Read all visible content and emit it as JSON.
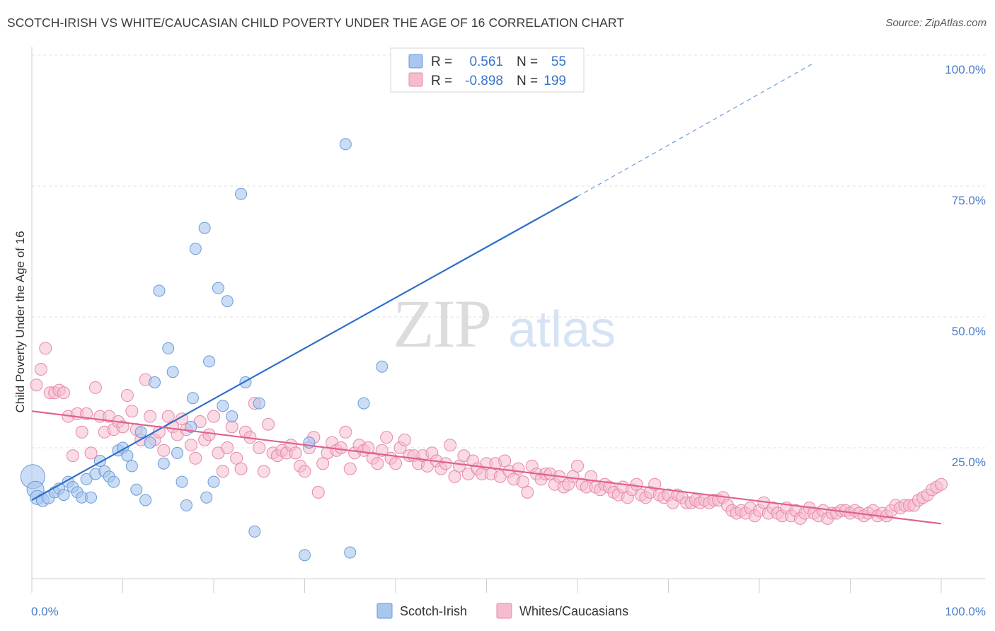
{
  "header": {
    "title": "SCOTCH-IRISH VS WHITE/CAUCASIAN CHILD POVERTY UNDER THE AGE OF 16 CORRELATION CHART",
    "source": "Source: ZipAtlas.com"
  },
  "watermark": {
    "zip": "ZIP",
    "atlas": "atlas"
  },
  "legend": {
    "rows": [
      {
        "r_label": "R =",
        "r_value": "0.561",
        "n_label": "N =",
        "n_value": "55",
        "color": "#a9c6ee",
        "stroke": "#6a9ad8"
      },
      {
        "r_label": "R =",
        "r_value": "-0.898",
        "n_label": "N =",
        "n_value": "199",
        "color": "#f6bccd",
        "stroke": "#e58aa8"
      }
    ]
  },
  "bottom_legend": [
    {
      "label": "Scotch-Irish",
      "color": "#a9c6ee",
      "stroke": "#6a9ad8"
    },
    {
      "label": "Whites/Caucasians",
      "color": "#f6bccd",
      "stroke": "#e58aa8"
    }
  ],
  "chart_data": {
    "type": "scatter",
    "title": "SCOTCH-IRISH VS WHITE/CAUCASIAN CHILD POVERTY UNDER THE AGE OF 16 CORRELATION CHART",
    "xlabel": "",
    "ylabel": "Child Poverty Under the Age of 16",
    "xlim": [
      0,
      100
    ],
    "ylim": [
      0,
      100
    ],
    "x_tick_labels": [
      "0.0%",
      "100.0%"
    ],
    "y_ticks": [
      25,
      50,
      75,
      100
    ],
    "y_tick_labels": [
      "25.0%",
      "50.0%",
      "75.0%",
      "100.0%"
    ],
    "grid": true,
    "legend_position": "top-center",
    "series": [
      {
        "name": "Scotch-Irish",
        "color": "#a9c6ee",
        "stroke": "#6a9ad8",
        "trend": {
          "x0": 0,
          "y0": 15.0,
          "x1": 60,
          "y1": 73.0,
          "dash_to_x": 86,
          "dash_to_y": 98.5,
          "color": "#2f6fcc"
        },
        "points": [
          [
            0.1,
            19.5,
            17
          ],
          [
            0.4,
            17.0,
            12
          ],
          [
            0.6,
            15.5,
            10
          ],
          [
            1.2,
            15.0,
            9
          ],
          [
            1.8,
            15.5,
            9
          ],
          [
            2.5,
            16.5,
            8
          ],
          [
            3.0,
            17.2,
            8
          ],
          [
            3.5,
            16.0,
            8
          ],
          [
            4.0,
            18.5,
            8
          ],
          [
            4.5,
            17.5,
            8
          ],
          [
            5.0,
            16.5,
            8
          ],
          [
            5.5,
            15.5,
            8
          ],
          [
            6.0,
            19.0,
            8
          ],
          [
            6.5,
            15.5,
            8
          ],
          [
            7.0,
            20.0,
            8
          ],
          [
            7.5,
            22.5,
            8
          ],
          [
            8.0,
            20.5,
            8
          ],
          [
            8.5,
            19.5,
            8
          ],
          [
            9.0,
            18.5,
            8
          ],
          [
            9.5,
            24.5,
            8
          ],
          [
            10.0,
            25.0,
            8
          ],
          [
            10.5,
            23.5,
            8
          ],
          [
            11.0,
            21.5,
            8
          ],
          [
            11.5,
            17.0,
            8
          ],
          [
            12.0,
            28.0,
            8
          ],
          [
            12.5,
            15.0,
            8
          ],
          [
            13.0,
            26.0,
            8
          ],
          [
            13.5,
            37.5,
            8
          ],
          [
            14.0,
            55.0,
            8
          ],
          [
            14.5,
            22.0,
            8
          ],
          [
            15.0,
            44.0,
            8
          ],
          [
            15.5,
            39.5,
            8
          ],
          [
            16.0,
            24.0,
            8
          ],
          [
            16.5,
            18.5,
            8
          ],
          [
            17.0,
            14.0,
            8
          ],
          [
            17.5,
            29.0,
            8
          ],
          [
            17.7,
            34.5,
            8
          ],
          [
            18.0,
            63.0,
            8
          ],
          [
            19.0,
            67.0,
            8
          ],
          [
            19.5,
            41.5,
            8
          ],
          [
            19.2,
            15.5,
            8
          ],
          [
            20.0,
            18.5,
            8
          ],
          [
            20.5,
            55.5,
            8
          ],
          [
            21.0,
            33.0,
            8
          ],
          [
            21.5,
            53.0,
            8
          ],
          [
            22.0,
            31.0,
            8
          ],
          [
            23.0,
            73.5,
            8
          ],
          [
            23.5,
            37.5,
            8
          ],
          [
            25.0,
            33.5,
            8
          ],
          [
            24.5,
            9.0,
            8
          ],
          [
            30.0,
            4.5,
            8
          ],
          [
            30.5,
            26.0,
            8
          ],
          [
            34.5,
            83.0,
            8
          ],
          [
            35.0,
            5.0,
            8
          ],
          [
            36.5,
            33.5,
            8
          ],
          [
            38.5,
            40.5,
            8
          ],
          [
            53.5,
            100.0,
            8
          ]
        ]
      },
      {
        "name": "Whites/Caucasians",
        "color": "#f6bccd",
        "stroke": "#e58aa8",
        "trend": {
          "x0": 0,
          "y0": 32.0,
          "x1": 100,
          "y1": 10.5,
          "color": "#e0608e"
        },
        "points": [
          [
            0.5,
            37
          ],
          [
            1.0,
            40
          ],
          [
            1.5,
            44
          ],
          [
            2.0,
            35.5
          ],
          [
            2.5,
            35.5
          ],
          [
            3.0,
            36
          ],
          [
            3.5,
            35.5
          ],
          [
            4.0,
            31
          ],
          [
            4.5,
            23.5
          ],
          [
            5.0,
            31.5
          ],
          [
            5.5,
            28
          ],
          [
            6.0,
            31.5
          ],
          [
            6.5,
            24
          ],
          [
            7.0,
            36.5
          ],
          [
            7.5,
            31
          ],
          [
            8.0,
            28
          ],
          [
            8.5,
            31
          ],
          [
            9.0,
            28.5
          ],
          [
            9.5,
            30
          ],
          [
            10.0,
            29
          ],
          [
            10.5,
            35
          ],
          [
            11.0,
            32
          ],
          [
            11.5,
            28.5
          ],
          [
            12.0,
            26.5
          ],
          [
            12.5,
            38
          ],
          [
            13.0,
            31
          ],
          [
            13.5,
            26.5
          ],
          [
            14.0,
            28
          ],
          [
            14.5,
            24.5
          ],
          [
            15.0,
            31
          ],
          [
            15.5,
            29
          ],
          [
            16.0,
            27.5
          ],
          [
            16.5,
            30.5
          ],
          [
            17.0,
            28.5
          ],
          [
            17.5,
            25.5
          ],
          [
            18.0,
            23
          ],
          [
            18.5,
            30
          ],
          [
            19.0,
            26.5
          ],
          [
            19.5,
            27.5
          ],
          [
            20.0,
            31
          ],
          [
            20.5,
            24
          ],
          [
            21.0,
            20.5
          ],
          [
            21.5,
            25
          ],
          [
            22.0,
            29
          ],
          [
            22.5,
            23
          ],
          [
            23.0,
            21
          ],
          [
            23.5,
            28
          ],
          [
            24.0,
            27
          ],
          [
            24.5,
            33.5
          ],
          [
            25.0,
            25
          ],
          [
            25.5,
            20.5
          ],
          [
            26.0,
            29.5
          ],
          [
            26.5,
            24
          ],
          [
            27.0,
            23.5
          ],
          [
            27.5,
            24.5
          ],
          [
            28.0,
            24
          ],
          [
            28.5,
            25.5
          ],
          [
            29.0,
            24
          ],
          [
            29.5,
            21.5
          ],
          [
            30.0,
            20.5
          ],
          [
            30.5,
            25
          ],
          [
            31.0,
            27
          ],
          [
            31.5,
            16.5
          ],
          [
            32.0,
            22
          ],
          [
            32.5,
            24
          ],
          [
            33.0,
            26
          ],
          [
            33.5,
            24.5
          ],
          [
            34.0,
            25
          ],
          [
            34.5,
            28
          ],
          [
            35.0,
            21
          ],
          [
            35.5,
            24
          ],
          [
            36.0,
            25.5
          ],
          [
            36.5,
            24.5
          ],
          [
            37.0,
            25
          ],
          [
            37.5,
            23
          ],
          [
            38.0,
            22
          ],
          [
            38.5,
            24.5
          ],
          [
            39.0,
            27
          ],
          [
            39.5,
            23
          ],
          [
            40.0,
            22
          ],
          [
            40.5,
            25
          ],
          [
            41.0,
            26.5
          ],
          [
            41.5,
            23.5
          ],
          [
            42.0,
            23.5
          ],
          [
            42.5,
            22
          ],
          [
            43.0,
            23.5
          ],
          [
            43.5,
            21.5
          ],
          [
            44.0,
            24
          ],
          [
            44.5,
            22.5
          ],
          [
            45.0,
            21
          ],
          [
            45.5,
            22
          ],
          [
            46.0,
            25.5
          ],
          [
            46.5,
            19.5
          ],
          [
            47.0,
            21.5
          ],
          [
            47.5,
            23.5
          ],
          [
            48.0,
            20
          ],
          [
            48.5,
            22.5
          ],
          [
            49.0,
            21
          ],
          [
            49.5,
            20
          ],
          [
            50.0,
            22
          ],
          [
            50.5,
            20
          ],
          [
            51.0,
            22
          ],
          [
            51.5,
            19.5
          ],
          [
            52.0,
            22.5
          ],
          [
            52.5,
            20.5
          ],
          [
            53.0,
            19
          ],
          [
            53.5,
            21
          ],
          [
            54.0,
            18.5
          ],
          [
            54.5,
            16.5
          ],
          [
            55.0,
            21.5
          ],
          [
            55.5,
            20
          ],
          [
            56.0,
            19
          ],
          [
            56.5,
            20
          ],
          [
            57.0,
            20
          ],
          [
            57.5,
            18
          ],
          [
            58.0,
            19.5
          ],
          [
            58.5,
            17.5
          ],
          [
            59.0,
            18
          ],
          [
            59.5,
            19.5
          ],
          [
            60.0,
            21.5
          ],
          [
            60.5,
            18
          ],
          [
            61.0,
            17.5
          ],
          [
            61.5,
            19.5
          ],
          [
            62.0,
            17.5
          ],
          [
            62.5,
            17.0
          ],
          [
            63.0,
            18
          ],
          [
            63.5,
            17.5
          ],
          [
            64.0,
            16.5
          ],
          [
            64.5,
            16
          ],
          [
            65.0,
            17.5
          ],
          [
            65.5,
            15.5
          ],
          [
            66.0,
            17
          ],
          [
            66.5,
            18
          ],
          [
            67.0,
            16
          ],
          [
            67.5,
            15.5
          ],
          [
            68.0,
            16.5
          ],
          [
            68.5,
            18
          ],
          [
            69.0,
            16
          ],
          [
            69.5,
            15.5
          ],
          [
            70.0,
            16
          ],
          [
            70.5,
            14.5
          ],
          [
            71.0,
            16
          ],
          [
            71.5,
            15.5
          ],
          [
            72.0,
            14.5
          ],
          [
            72.5,
            14.5
          ],
          [
            73.0,
            15
          ],
          [
            73.5,
            14.5
          ],
          [
            74.0,
            15
          ],
          [
            74.5,
            14.5
          ],
          [
            75.0,
            15
          ],
          [
            75.5,
            15
          ],
          [
            76.0,
            15.5
          ],
          [
            76.5,
            14
          ],
          [
            77.0,
            13
          ],
          [
            77.5,
            12.5
          ],
          [
            78.0,
            13
          ],
          [
            78.5,
            12.5
          ],
          [
            79.0,
            13.5
          ],
          [
            79.5,
            12
          ],
          [
            80.0,
            13
          ],
          [
            80.5,
            14.5
          ],
          [
            81.0,
            12.5
          ],
          [
            81.5,
            13.5
          ],
          [
            82.0,
            12.5
          ],
          [
            82.5,
            12
          ],
          [
            83.0,
            13.5
          ],
          [
            83.5,
            12
          ],
          [
            84.0,
            13
          ],
          [
            84.5,
            11.5
          ],
          [
            85.0,
            12.5
          ],
          [
            85.5,
            13.5
          ],
          [
            86.0,
            12.5
          ],
          [
            86.5,
            12
          ],
          [
            87.0,
            13
          ],
          [
            87.5,
            11.5
          ],
          [
            88.0,
            12.5
          ],
          [
            88.5,
            12.5
          ],
          [
            89.0,
            13
          ],
          [
            89.5,
            13
          ],
          [
            90.0,
            12.5
          ],
          [
            90.5,
            13
          ],
          [
            91.0,
            12.5
          ],
          [
            91.5,
            12
          ],
          [
            92.0,
            12.5
          ],
          [
            92.5,
            13
          ],
          [
            93.0,
            12
          ],
          [
            93.5,
            12.5
          ],
          [
            94.0,
            12
          ],
          [
            94.5,
            13
          ],
          [
            95.0,
            14
          ],
          [
            95.5,
            13.5
          ],
          [
            96.0,
            14
          ],
          [
            96.5,
            14
          ],
          [
            97.0,
            14
          ],
          [
            97.5,
            15
          ],
          [
            98.0,
            15.5
          ],
          [
            98.5,
            16
          ],
          [
            99.0,
            17
          ],
          [
            99.5,
            17.5
          ],
          [
            100.0,
            18
          ]
        ]
      }
    ]
  }
}
